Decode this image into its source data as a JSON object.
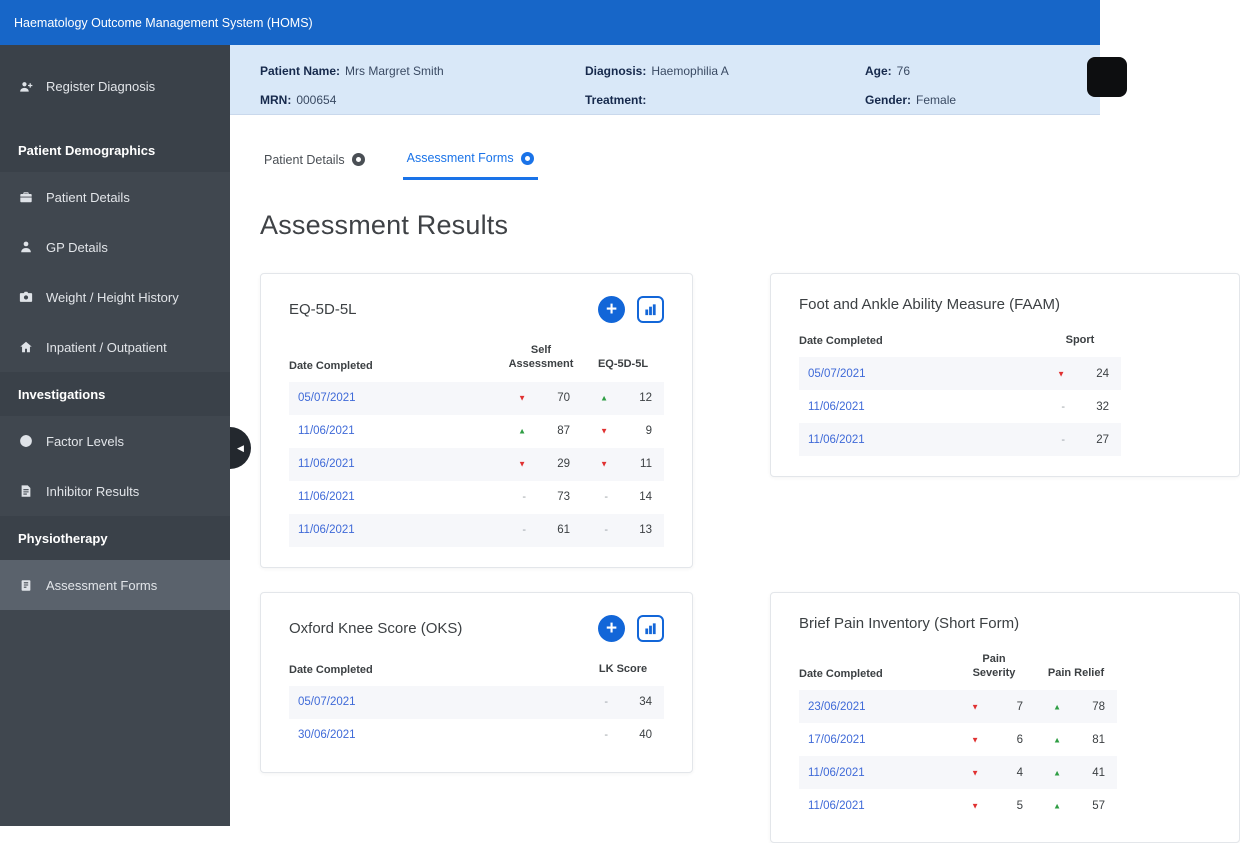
{
  "app": {
    "title": "Haematology Outcome Management System (HOMS)"
  },
  "sidebar": {
    "items": [
      {
        "type": "item",
        "label": "Register Diagnosis",
        "icon": "person-add-icon",
        "dark": true
      },
      {
        "type": "section",
        "label": "Patient Demographics"
      },
      {
        "type": "item",
        "label": "Patient Details",
        "icon": "briefcase-icon"
      },
      {
        "type": "item",
        "label": "GP Details",
        "icon": "person-icon"
      },
      {
        "type": "item",
        "label": "Weight / Height History",
        "icon": "camera-icon"
      },
      {
        "type": "item",
        "label": "Inpatient / Outpatient",
        "icon": "home-icon"
      },
      {
        "type": "section",
        "label": "Investigations"
      },
      {
        "type": "item",
        "label": "Factor Levels",
        "icon": "globe-icon"
      },
      {
        "type": "item",
        "label": "Inhibitor Results",
        "icon": "document-icon"
      },
      {
        "type": "section",
        "label": "Physiotherapy"
      },
      {
        "type": "item",
        "label": "Assessment Forms",
        "icon": "clipboard-icon",
        "active": true
      }
    ]
  },
  "patient_bar": {
    "fields": [
      {
        "label": "Patient Name:",
        "value": "Mrs Margret Smith"
      },
      {
        "label": "MRN:",
        "value": "000654"
      },
      {
        "label": "Diagnosis:",
        "value": "Haemophilia A"
      },
      {
        "label": "Treatment:",
        "value": ""
      },
      {
        "label": "Age:",
        "value": "76"
      },
      {
        "label": "Gender:",
        "value": "Female"
      }
    ]
  },
  "tabs": [
    {
      "label": "Patient Details",
      "active": false
    },
    {
      "label": "Assessment Forms",
      "active": true
    }
  ],
  "page_title": "Assessment Results",
  "card_actions": {
    "add_label": "+",
    "chart_icon": "bar-chart-icon"
  },
  "cards": [
    {
      "id": "eq5d5l",
      "title": "EQ-5D-5L",
      "has_buttons": true,
      "date_header": "Date Completed",
      "pair_headers": [
        "Self\nAssessment",
        "EQ-5D-5L"
      ],
      "rows": [
        {
          "date": "05/07/2021",
          "pairs": [
            {
              "trend": "down",
              "value": "70"
            },
            {
              "trend": "up",
              "value": "12"
            }
          ]
        },
        {
          "date": "11/06/2021",
          "pairs": [
            {
              "trend": "up",
              "value": "87"
            },
            {
              "trend": "down",
              "value": "9"
            }
          ]
        },
        {
          "date": "11/06/2021",
          "pairs": [
            {
              "trend": "down",
              "value": "29"
            },
            {
              "trend": "down",
              "value": "11"
            }
          ]
        },
        {
          "date": "11/06/2021",
          "pairs": [
            {
              "trend": "none",
              "value": "73"
            },
            {
              "trend": "none",
              "value": "14"
            }
          ]
        },
        {
          "date": "11/06/2021",
          "pairs": [
            {
              "trend": "none",
              "value": "61"
            },
            {
              "trend": "none",
              "value": "13"
            }
          ]
        }
      ]
    },
    {
      "id": "faam",
      "title": "Foot and Ankle Ability Measure (FAAM)",
      "has_buttons": false,
      "date_header": "Date Completed",
      "pair_headers": [
        "Sport"
      ],
      "rows": [
        {
          "date": "05/07/2021",
          "pairs": [
            {
              "trend": "down",
              "value": "24"
            }
          ]
        },
        {
          "date": "11/06/2021",
          "pairs": [
            {
              "trend": "none",
              "value": "32"
            }
          ]
        },
        {
          "date": "11/06/2021",
          "pairs": [
            {
              "trend": "none",
              "value": "27"
            }
          ]
        }
      ]
    },
    {
      "id": "oks",
      "title": "Oxford Knee Score (OKS)",
      "has_buttons": true,
      "date_header": "Date Completed",
      "pair_headers": [
        "LK Score"
      ],
      "rows": [
        {
          "date": "05/07/2021",
          "pairs": [
            {
              "trend": "none",
              "value": "34"
            }
          ]
        },
        {
          "date": "30/06/2021",
          "pairs": [
            {
              "trend": "none",
              "value": "40"
            }
          ]
        }
      ]
    },
    {
      "id": "bpi",
      "title": "Brief Pain Inventory (Short Form)",
      "has_buttons": false,
      "date_header": "Date Completed",
      "pair_headers": [
        "Pain\nSeverity",
        "Pain Relief"
      ],
      "rows": [
        {
          "date": "23/06/2021",
          "pairs": [
            {
              "trend": "down",
              "value": "7"
            },
            {
              "trend": "up",
              "value": "78"
            }
          ]
        },
        {
          "date": "17/06/2021",
          "pairs": [
            {
              "trend": "down",
              "value": "6"
            },
            {
              "trend": "up",
              "value": "81"
            }
          ]
        },
        {
          "date": "11/06/2021",
          "pairs": [
            {
              "trend": "down",
              "value": "4"
            },
            {
              "trend": "up",
              "value": "41"
            }
          ]
        },
        {
          "date": "11/06/2021",
          "pairs": [
            {
              "trend": "down",
              "value": "5"
            },
            {
              "trend": "up",
              "value": "57"
            }
          ]
        }
      ]
    }
  ],
  "colors": {
    "topbar": "#1766c8",
    "sidebar": "#40474f",
    "sidebar_dark": "#3a4149",
    "active_item": "#5a626c",
    "patient_bar": "#d9e8f8",
    "accent": "#1266d8",
    "link": "#3f6ad8",
    "up": "#2f9e44",
    "down": "#e03131"
  }
}
